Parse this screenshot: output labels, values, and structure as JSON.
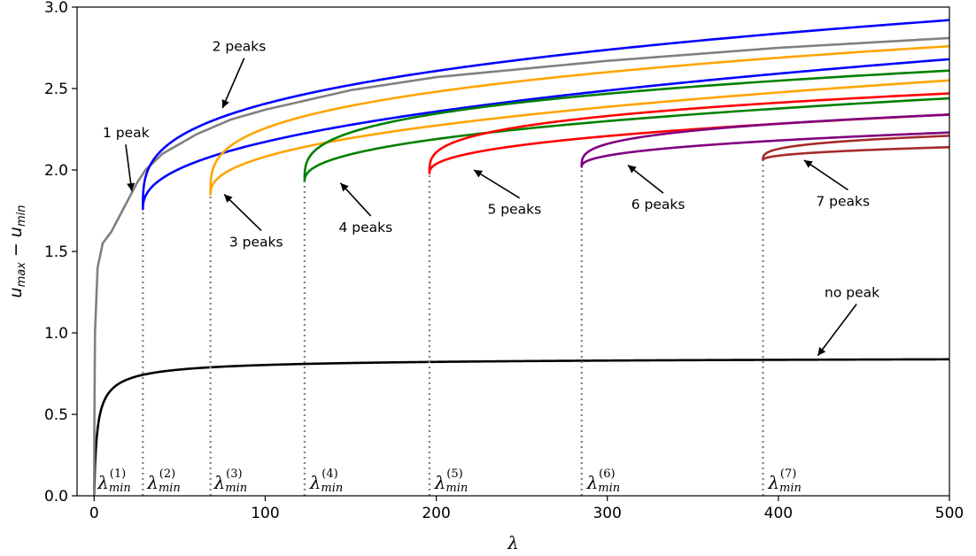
{
  "chart_data": {
    "type": "line",
    "xlim": [
      -10,
      500
    ],
    "ylim": [
      0,
      3.0
    ],
    "x_ticks": [
      0,
      100,
      200,
      300,
      400,
      500
    ],
    "y_ticks": [
      0.0,
      0.5,
      1.0,
      1.5,
      2.0,
      2.5,
      3.0
    ],
    "x_tick_labels": [
      "0",
      "100",
      "200",
      "300",
      "400",
      "500"
    ],
    "y_tick_labels": [
      "0.0",
      "0.5",
      "1.0",
      "1.5",
      "2.0",
      "2.5",
      "3.0"
    ],
    "xlabel": "λ",
    "ylabel_parts": [
      "u",
      "max",
      " − ",
      "u",
      "min"
    ],
    "grid": false,
    "legend": "none",
    "series": [
      {
        "key": "no-peak",
        "color": "#000000",
        "type": "curve",
        "lambda_start": 0,
        "a": 0.86,
        "c": 1.0,
        "b": 1.7
      },
      {
        "key": "1-peak",
        "color": "#808080",
        "type": "curve-steep",
        "x": [
          0,
          0.1,
          0.5,
          2,
          5,
          10,
          15,
          20,
          25,
          30,
          40,
          60,
          80,
          100,
          150,
          200,
          300,
          400,
          500
        ],
        "y": [
          0,
          0.4,
          1.0,
          1.4,
          1.55,
          1.62,
          1.72,
          1.82,
          1.92,
          2.0,
          2.1,
          2.22,
          2.31,
          2.37,
          2.49,
          2.57,
          2.67,
          2.75,
          2.81
        ]
      },
      {
        "key": "2-peaks",
        "color": "#0000ff",
        "type": "fold",
        "lambda_min": 28.5,
        "y_min": 1.76,
        "upper_end": 2.92,
        "lower_end": 2.68
      },
      {
        "key": "3-peaks",
        "color": "#ffa500",
        "type": "fold",
        "lambda_min": 68,
        "y_min": 1.85,
        "upper_end": 2.76,
        "lower_end": 2.55
      },
      {
        "key": "4-peaks",
        "color": "#008000",
        "type": "fold",
        "lambda_min": 123,
        "y_min": 1.93,
        "upper_end": 2.61,
        "lower_end": 2.44
      },
      {
        "key": "5-peaks",
        "color": "#ff0000",
        "type": "fold",
        "lambda_min": 196,
        "y_min": 1.98,
        "upper_end": 2.47,
        "lower_end": 2.34
      },
      {
        "key": "6-peaks",
        "color": "#800080",
        "type": "fold",
        "lambda_min": 285,
        "y_min": 2.02,
        "upper_end": 2.34,
        "lower_end": 2.23
      },
      {
        "key": "7-peaks",
        "color": "#a52a2a",
        "type": "fold",
        "lambda_min": 391,
        "y_min": 2.06,
        "upper_end": 2.21,
        "lower_end": 2.14
      }
    ],
    "vlines": [
      {
        "x": 0,
        "y_top": 0
      },
      {
        "x": 28.5,
        "y_top": 1.76
      },
      {
        "x": 68,
        "y_top": 1.85
      },
      {
        "x": 123,
        "y_top": 1.93
      },
      {
        "x": 196,
        "y_top": 1.98
      },
      {
        "x": 285,
        "y_top": 2.02
      },
      {
        "x": 391,
        "y_top": 2.06
      }
    ],
    "lambda_min_labels": [
      {
        "x": 1,
        "sup": "(1)"
      },
      {
        "x": 30,
        "sup": "(2)"
      },
      {
        "x": 69,
        "sup": "(3)"
      },
      {
        "x": 125,
        "sup": "(4)"
      },
      {
        "x": 198,
        "sup": "(5)"
      },
      {
        "x": 287,
        "sup": "(6)"
      },
      {
        "x": 393,
        "sup": "(7)"
      }
    ],
    "lambda_symbol": "λ",
    "lambda_sub": "min",
    "annotations": [
      {
        "text": "1 peak",
        "text_x": 5,
        "text_y": 2.2,
        "arrow_x": 22,
        "arrow_y": 1.87
      },
      {
        "text": "2 peaks",
        "text_x": 69,
        "text_y": 2.73,
        "arrow_x": 75,
        "arrow_y": 2.38
      },
      {
        "text": "3 peaks",
        "text_x": 79,
        "text_y": 1.53,
        "arrow_x": 76,
        "arrow_y": 1.85
      },
      {
        "text": "4 peaks",
        "text_x": 143,
        "text_y": 1.62,
        "arrow_x": 144,
        "arrow_y": 1.92
      },
      {
        "text": "5 peaks",
        "text_x": 230,
        "text_y": 1.73,
        "arrow_x": 222,
        "arrow_y": 2.0
      },
      {
        "text": "6 peaks",
        "text_x": 314,
        "text_y": 1.76,
        "arrow_x": 312,
        "arrow_y": 2.03
      },
      {
        "text": "7 peaks",
        "text_x": 422,
        "text_y": 1.78,
        "arrow_x": 415,
        "arrow_y": 2.06
      },
      {
        "text": "no peak",
        "text_x": 427,
        "text_y": 1.22,
        "arrow_x": 423,
        "arrow_y": 0.86
      }
    ]
  }
}
